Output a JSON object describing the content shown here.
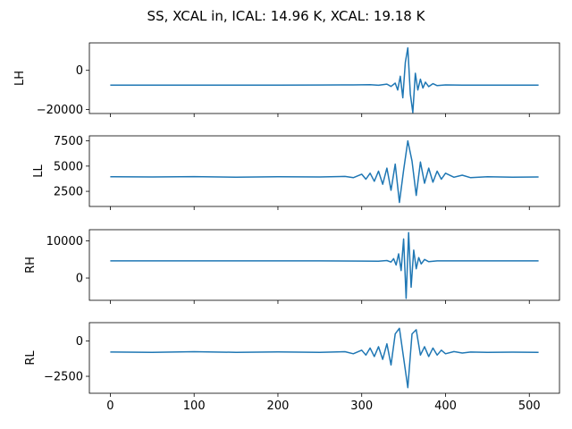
{
  "chart_data": {
    "type": "line",
    "title": "SS, XCAL in, ICAL: 14.96 K, XCAL: 19.18 K",
    "series_color": "#1f77b4",
    "xlim": [
      -25,
      536
    ],
    "x_ticks": [
      0,
      100,
      200,
      300,
      400,
      500
    ],
    "panels": [
      {
        "ylabel": "LH",
        "ylim": [
          -22000,
          14000
        ],
        "y_ticks": [
          {
            "v": 0,
            "label": "0"
          },
          {
            "v": -20000,
            "label": "−20000"
          }
        ],
        "series": {
          "x": [
            0,
            50,
            100,
            150,
            200,
            250,
            290,
            300,
            310,
            320,
            330,
            335,
            340,
            343,
            346,
            349,
            352,
            355,
            358,
            361,
            364,
            367,
            370,
            373,
            376,
            380,
            385,
            390,
            400,
            420,
            450,
            511
          ],
          "values": [
            -7500,
            -7500,
            -7500,
            -7500,
            -7500,
            -7450,
            -7400,
            -7350,
            -7300,
            -7600,
            -7000,
            -8200,
            -6500,
            -10000,
            -3000,
            -14000,
            4000,
            11500,
            -12000,
            -21500,
            -1500,
            -10000,
            -4500,
            -9000,
            -6000,
            -8300,
            -6800,
            -7800,
            -7400,
            -7500,
            -7500,
            -7500
          ]
        }
      },
      {
        "ylabel": "LL",
        "ylim": [
          1000,
          8000
        ],
        "y_ticks": [
          {
            "v": 7500,
            "label": "7500"
          },
          {
            "v": 5000,
            "label": "5000"
          },
          {
            "v": 2500,
            "label": "2500"
          }
        ],
        "series": {
          "x": [
            0,
            50,
            100,
            150,
            200,
            250,
            280,
            290,
            300,
            305,
            310,
            315,
            320,
            325,
            330,
            335,
            340,
            345,
            350,
            355,
            360,
            365,
            370,
            375,
            380,
            385,
            390,
            395,
            400,
            410,
            420,
            430,
            450,
            480,
            511
          ],
          "values": [
            3950,
            3920,
            3960,
            3900,
            3950,
            3920,
            3980,
            3850,
            4200,
            3700,
            4300,
            3500,
            4500,
            3200,
            4800,
            2600,
            5200,
            1400,
            4600,
            7500,
            5500,
            2100,
            5400,
            3300,
            4800,
            3400,
            4500,
            3700,
            4300,
            3900,
            4100,
            3850,
            3950,
            3900,
            3920
          ]
        }
      },
      {
        "ylabel": "RH",
        "ylim": [
          -6000,
          13000
        ],
        "y_ticks": [
          {
            "v": 10000,
            "label": "10000"
          },
          {
            "v": 0,
            "label": "0"
          }
        ],
        "series": {
          "x": [
            0,
            50,
            100,
            150,
            200,
            250,
            300,
            320,
            330,
            335,
            338,
            341,
            344,
            347,
            350,
            353,
            356,
            359,
            362,
            365,
            368,
            371,
            375,
            380,
            390,
            420,
            460,
            511
          ],
          "values": [
            4600,
            4600,
            4600,
            4600,
            4600,
            4600,
            4550,
            4500,
            4700,
            4300,
            5200,
            3500,
            6500,
            2000,
            10500,
            -5500,
            12200,
            -2500,
            7500,
            2500,
            5500,
            3800,
            5000,
            4400,
            4600,
            4600,
            4600,
            4600
          ]
        }
      },
      {
        "ylabel": "RL",
        "ylim": [
          -3700,
          1300
        ],
        "y_ticks": [
          {
            "v": 0,
            "label": "0"
          },
          {
            "v": -2500,
            "label": "−2500"
          }
        ],
        "series": {
          "x": [
            0,
            50,
            100,
            150,
            200,
            250,
            280,
            290,
            300,
            305,
            310,
            315,
            320,
            325,
            330,
            335,
            340,
            345,
            350,
            355,
            360,
            365,
            370,
            375,
            380,
            385,
            390,
            395,
            400,
            410,
            420,
            430,
            450,
            480,
            511
          ],
          "values": [
            -780,
            -800,
            -760,
            -800,
            -770,
            -800,
            -760,
            -900,
            -650,
            -1000,
            -500,
            -1100,
            -400,
            -1300,
            -200,
            -1700,
            500,
            900,
            -1200,
            -3300,
            500,
            800,
            -1000,
            -400,
            -1100,
            -500,
            -1000,
            -650,
            -900,
            -750,
            -850,
            -780,
            -800,
            -790,
            -800
          ]
        }
      }
    ]
  }
}
